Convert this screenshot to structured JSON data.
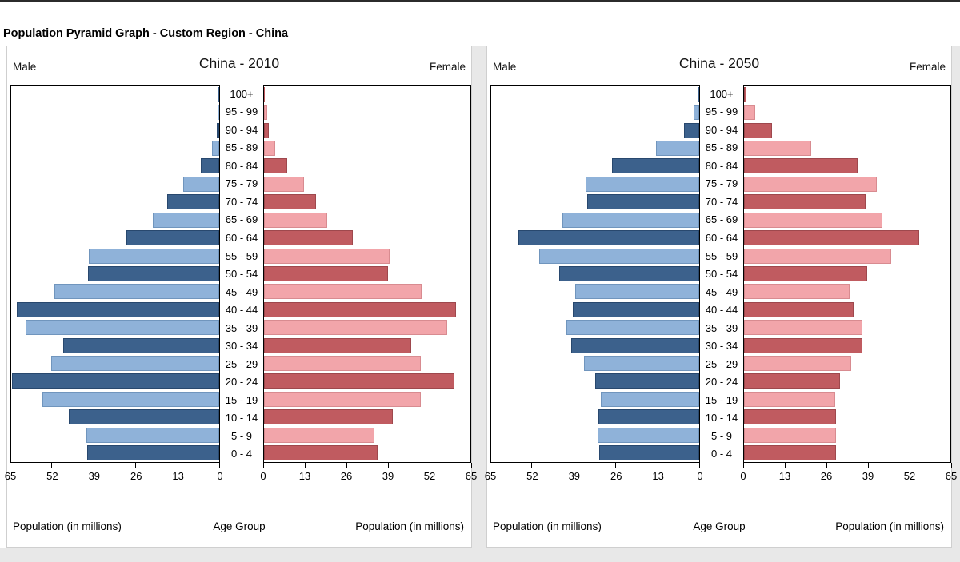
{
  "page_title": "Population Pyramid Graph - Custom Region - China",
  "colors": {
    "male_dark": "#3C618C",
    "male_light": "#8FB2D9",
    "female_dark": "#C05B60",
    "female_light": "#F2A5AA",
    "plot_border": "#000000",
    "page_gap": "#e8e8e8"
  },
  "shared_labels": {
    "male": "Male",
    "female": "Female",
    "age_axis": "Age Group",
    "population_axis": "Population (in millions)"
  },
  "chart_data": [
    {
      "type": "bar",
      "variant": "population-pyramid",
      "title": "China - 2010",
      "xlabel": "Population (in millions)",
      "center_label": "Age Group",
      "xmax": 65,
      "xticks": [
        0,
        13,
        26,
        39,
        52,
        65
      ],
      "row_order": "top-to-bottom",
      "categories": [
        "100+",
        "95 - 99",
        "90 - 94",
        "85 - 89",
        "80 - 84",
        "75 - 79",
        "70 - 74",
        "65 - 69",
        "60 - 64",
        "55 - 59",
        "50 - 54",
        "45 - 49",
        "40 - 44",
        "35 - 39",
        "30 - 34",
        "25 - 29",
        "20 - 24",
        "15 - 19",
        "10 - 14",
        "5 - 9",
        "0 - 4"
      ],
      "series": [
        {
          "name": "Male",
          "side": "left",
          "values": [
            0.1,
            0.3,
            0.7,
            2.2,
            5.8,
            11.2,
            16.3,
            20.7,
            28.9,
            40.7,
            41.0,
            51.4,
            63.3,
            60.6,
            48.7,
            52.4,
            64.8,
            55.2,
            47.0,
            41.4,
            41.3
          ]
        },
        {
          "name": "Female",
          "side": "right",
          "values": [
            0.3,
            0.9,
            1.4,
            3.5,
            7.4,
            12.6,
            16.5,
            20.0,
            28.0,
            39.5,
            39.0,
            49.7,
            60.5,
            57.8,
            46.3,
            49.5,
            60.0,
            49.3,
            40.5,
            34.7,
            35.7
          ]
        }
      ]
    },
    {
      "type": "bar",
      "variant": "population-pyramid",
      "title": "China - 2050",
      "xlabel": "Population (in millions)",
      "center_label": "Age Group",
      "xmax": 65,
      "xticks": [
        0,
        13,
        26,
        39,
        52,
        65
      ],
      "row_order": "top-to-bottom",
      "categories": [
        "100+",
        "95 - 99",
        "90 - 94",
        "85 - 89",
        "80 - 84",
        "75 - 79",
        "70 - 74",
        "65 - 69",
        "60 - 64",
        "55 - 59",
        "50 - 54",
        "45 - 49",
        "40 - 44",
        "35 - 39",
        "30 - 34",
        "25 - 29",
        "20 - 24",
        "15 - 19",
        "10 - 14",
        "5 - 9",
        "0 - 4"
      ],
      "series": [
        {
          "name": "Male",
          "side": "left",
          "values": [
            0.3,
            1.8,
            4.7,
            13.5,
            27.3,
            35.4,
            35.0,
            42.7,
            56.5,
            50.0,
            43.8,
            38.7,
            39.4,
            41.6,
            40.0,
            36.0,
            32.6,
            30.8,
            31.5,
            31.8,
            31.2
          ]
        },
        {
          "name": "Female",
          "side": "right",
          "values": [
            0.8,
            3.5,
            8.8,
            21.2,
            35.9,
            41.9,
            38.3,
            43.7,
            55.3,
            46.4,
            38.8,
            33.3,
            34.4,
            37.4,
            37.2,
            33.8,
            30.3,
            28.6,
            29.0,
            29.0,
            29.0
          ]
        }
      ]
    }
  ]
}
